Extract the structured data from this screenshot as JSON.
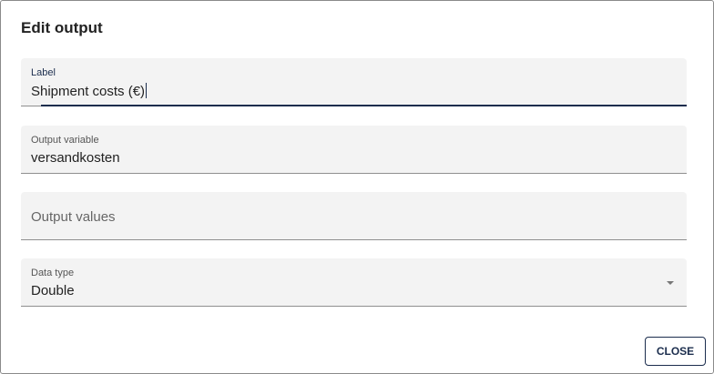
{
  "dialog": {
    "title": "Edit output",
    "close_label": "CLOSE"
  },
  "fields": {
    "label": {
      "label": "Label",
      "value": "Shipment costs (€)"
    },
    "output_variable": {
      "label": "Output variable",
      "value": "versandkosten"
    },
    "output_values": {
      "placeholder": "Output values"
    },
    "data_type": {
      "label": "Data type",
      "value": "Double"
    }
  },
  "colors": {
    "accent": "#1b2d4d",
    "field_bg": "#f3f3f3"
  }
}
